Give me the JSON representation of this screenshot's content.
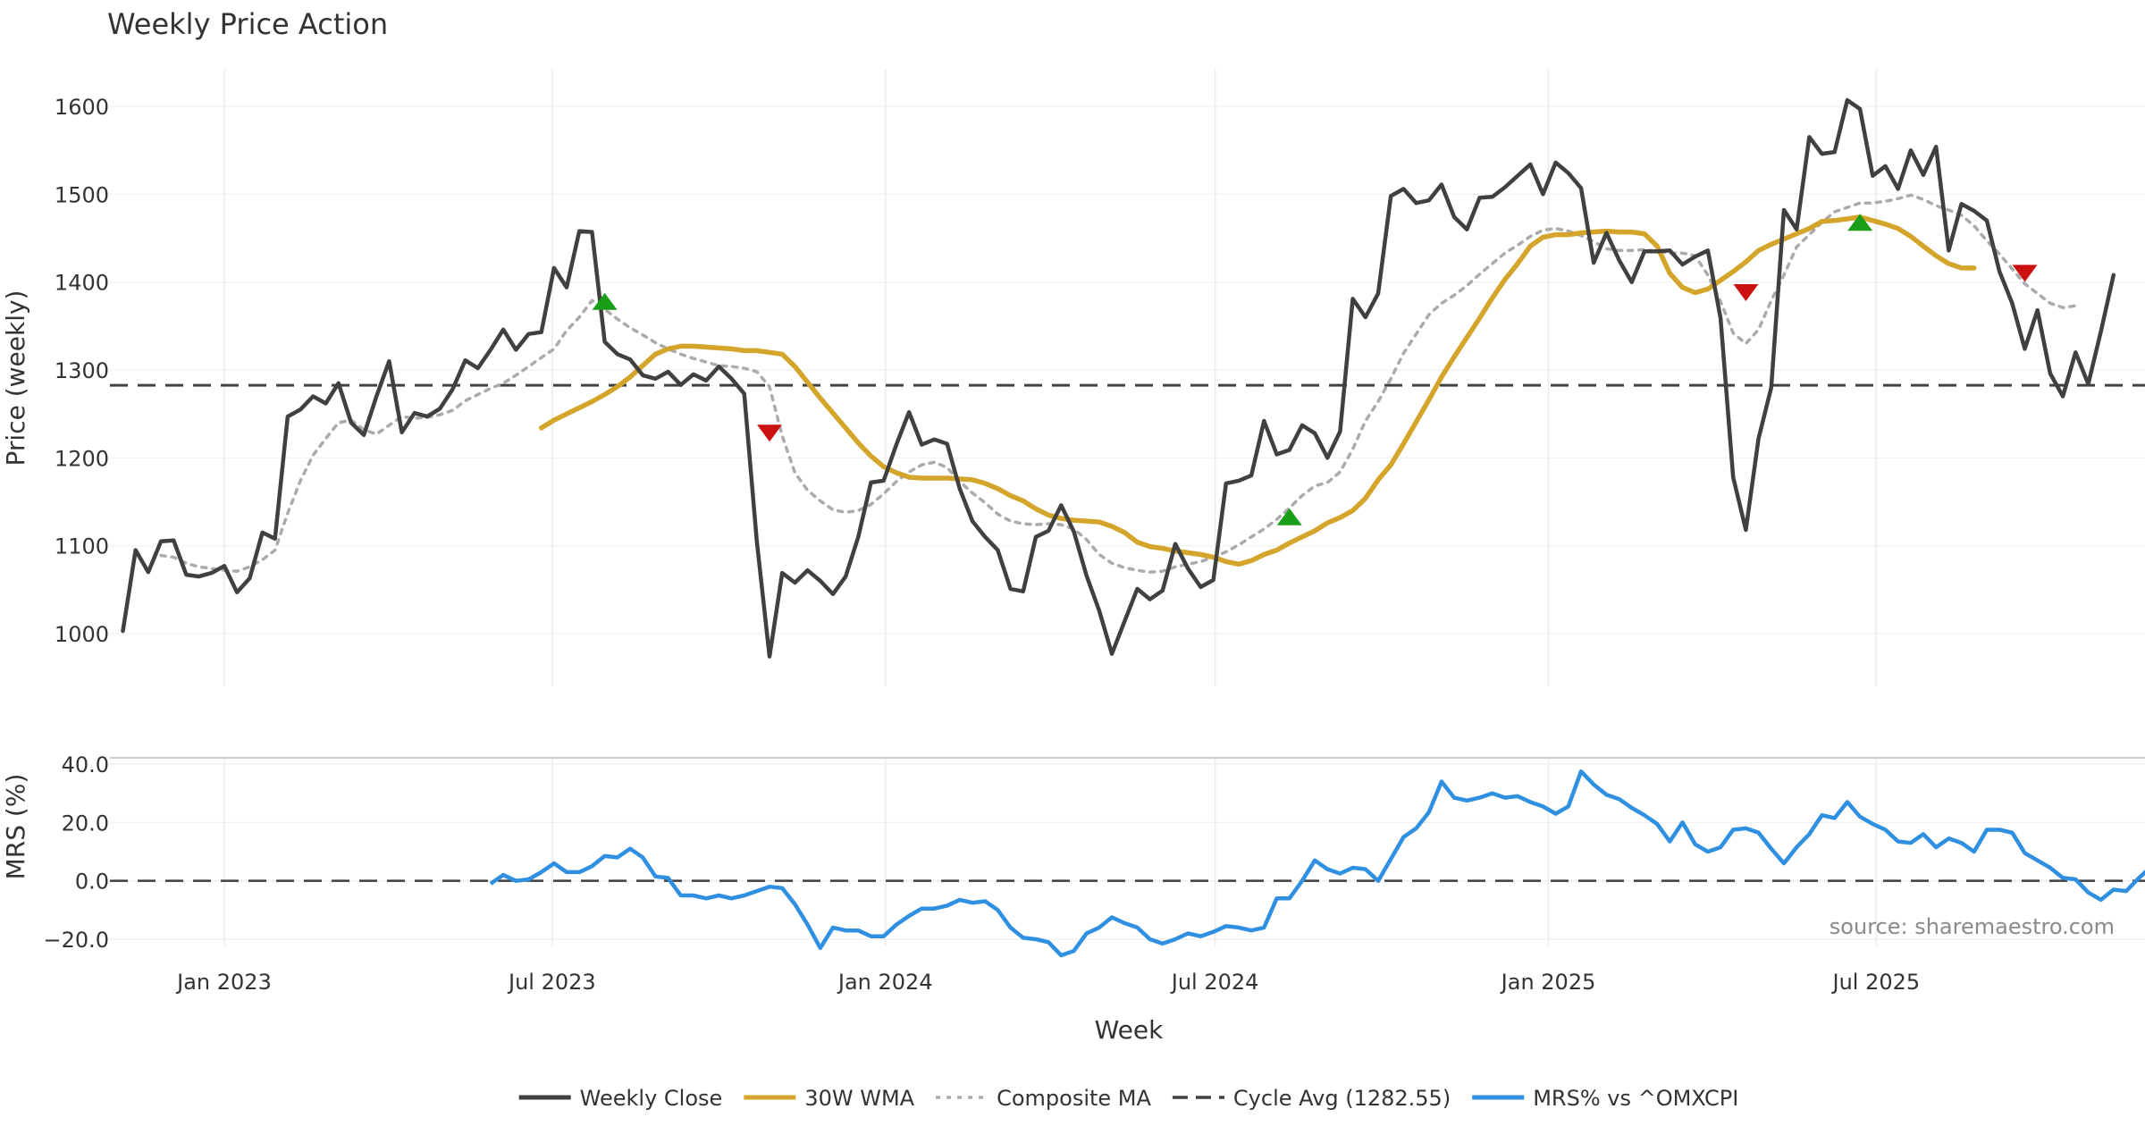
{
  "chart_data": [
    {
      "type": "line",
      "title": "Weekly Price Action",
      "ylabel": "Price (weekly)",
      "ylim": [
        945,
        1650
      ],
      "yticks": [
        1000,
        1100,
        1200,
        1300,
        1400,
        1500,
        1600
      ],
      "x_start": "2022-11-06",
      "x_step_days": 7,
      "series": [
        {
          "name": "Weekly Close",
          "color": "#404040",
          "style": "solid",
          "start_index": 0,
          "values": [
            1003,
            1095,
            1070,
            1105,
            1106,
            1067,
            1065,
            1069,
            1077,
            1047,
            1063,
            1115,
            1108,
            1247,
            1255,
            1270,
            1262,
            1285,
            1240,
            1226,
            1270,
            1310,
            1229,
            1251,
            1247,
            1256,
            1278,
            1311,
            1302,
            1323,
            1346,
            1323,
            1341,
            1343,
            1416,
            1394,
            1458,
            1457,
            1332,
            1318,
            1312,
            1294,
            1290,
            1298,
            1283,
            1295,
            1288,
            1304,
            1290,
            1273,
            1105,
            974,
            1069,
            1058,
            1072,
            1060,
            1045,
            1065,
            1110,
            1172,
            1174,
            1215,
            1252,
            1215,
            1221,
            1216,
            1165,
            1128,
            1110,
            1095,
            1051,
            1048,
            1110,
            1117,
            1146,
            1116,
            1066,
            1026,
            977,
            1014,
            1051,
            1039,
            1049,
            1102,
            1074,
            1053,
            1061,
            1171,
            1174,
            1180,
            1242,
            1204,
            1209,
            1237,
            1228,
            1200,
            1230,
            1381,
            1360,
            1387,
            1498,
            1506,
            1490,
            1493,
            1511,
            1474,
            1460,
            1496,
            1497,
            1508,
            1521,
            1534,
            1500,
            1536,
            1524,
            1507,
            1422,
            1456,
            1425,
            1400,
            1435,
            1435,
            1436,
            1420,
            1429,
            1436,
            1359,
            1178,
            1118,
            1222,
            1280,
            1482,
            1460,
            1565,
            1546,
            1548,
            1607,
            1597,
            1521,
            1532,
            1506,
            1550,
            1522,
            1554,
            1436,
            1489,
            1481,
            1470,
            1412,
            1376,
            1324,
            1368,
            1296,
            1270,
            1320,
            1284,
            1344,
            1408
          ]
        },
        {
          "name": "30W WMA",
          "color": "#d4a52a",
          "style": "solid",
          "start_index": 33,
          "values": [
            1234,
            1243,
            1250,
            1257,
            1264,
            1272,
            1281,
            1292,
            1305,
            1318,
            1324,
            1327,
            1327,
            1326,
            1325,
            1324,
            1322,
            1322,
            1320,
            1318,
            1304,
            1286,
            1268,
            1251,
            1234,
            1217,
            1202,
            1190,
            1183,
            1178,
            1177,
            1177,
            1177,
            1176,
            1175,
            1171,
            1165,
            1157,
            1151,
            1142,
            1135,
            1131,
            1129,
            1128,
            1127,
            1122,
            1115,
            1104,
            1099,
            1097,
            1094,
            1092,
            1090,
            1087,
            1082,
            1079,
            1083,
            1090,
            1095,
            1103,
            1110,
            1117,
            1126,
            1132,
            1140,
            1154,
            1175,
            1192,
            1216,
            1241,
            1266,
            1292,
            1315,
            1337,
            1359,
            1382,
            1403,
            1421,
            1441,
            1451,
            1454,
            1454,
            1456,
            1457,
            1458,
            1457,
            1457,
            1455,
            1441,
            1410,
            1394,
            1388,
            1392,
            1402,
            1412,
            1423,
            1436,
            1443,
            1449,
            1455,
            1461,
            1469,
            1470,
            1472,
            1474,
            1470,
            1466,
            1461,
            1452,
            1441,
            1430,
            1421,
            1416,
            1416
          ]
        },
        {
          "name": "Composite MA",
          "color": "#ababab",
          "style": "dotted",
          "start_index": 3,
          "values": [
            1089,
            1087,
            1080,
            1076,
            1074,
            1072,
            1071,
            1076,
            1084,
            1095,
            1137,
            1174,
            1203,
            1222,
            1240,
            1243,
            1232,
            1227,
            1237,
            1247,
            1245,
            1246,
            1249,
            1254,
            1265,
            1272,
            1279,
            1285,
            1294,
            1304,
            1314,
            1324,
            1345,
            1360,
            1379,
            1369,
            1358,
            1348,
            1340,
            1331,
            1324,
            1318,
            1313,
            1309,
            1305,
            1304,
            1302,
            1298,
            1281,
            1225,
            1183,
            1163,
            1151,
            1141,
            1138,
            1140,
            1147,
            1159,
            1173,
            1184,
            1192,
            1195,
            1189,
            1173,
            1160,
            1149,
            1136,
            1128,
            1125,
            1124,
            1125,
            1124,
            1119,
            1107,
            1090,
            1080,
            1075,
            1072,
            1070,
            1071,
            1076,
            1079,
            1082,
            1087,
            1093,
            1101,
            1110,
            1119,
            1130,
            1143,
            1157,
            1168,
            1172,
            1184,
            1210,
            1242,
            1264,
            1290,
            1319,
            1341,
            1363,
            1376,
            1385,
            1396,
            1409,
            1421,
            1433,
            1442,
            1452,
            1459,
            1461,
            1458,
            1453,
            1446,
            1438,
            1436,
            1436,
            1437,
            1435,
            1433,
            1433,
            1430,
            1408,
            1378,
            1342,
            1330,
            1346,
            1379,
            1408,
            1440,
            1454,
            1468,
            1480,
            1485,
            1490,
            1490,
            1492,
            1495,
            1499,
            1494,
            1487,
            1482,
            1476,
            1464,
            1447,
            1432,
            1415,
            1398,
            1387,
            1376,
            1371,
            1373
          ]
        },
        {
          "name": "Cycle Avg (1282.55)",
          "color": "#404040",
          "style": "dashed",
          "constant": 1282.55
        }
      ],
      "markers": [
        {
          "type": "buy",
          "x": "2023-07-30",
          "y": 1378,
          "color": "#1a9e1a"
        },
        {
          "type": "sell",
          "x": "2023-10-29",
          "y": 1228,
          "color": "#cc1111"
        },
        {
          "type": "buy",
          "x": "2024-08-11",
          "y": 1133,
          "color": "#1a9e1a"
        },
        {
          "type": "sell",
          "x": "2025-04-20",
          "y": 1388,
          "color": "#cc1111"
        },
        {
          "type": "buy",
          "x": "2025-06-22",
          "y": 1468,
          "color": "#1a9e1a"
        },
        {
          "type": "sell",
          "x": "2025-09-21",
          "y": 1410,
          "color": "#cc1111"
        }
      ]
    },
    {
      "type": "line",
      "ylabel": "MRS (%)",
      "xlabel": "Week",
      "ylim": [
        -24,
        42
      ],
      "yticks": [
        -20,
        0,
        20,
        40
      ],
      "ytick_labels": [
        "−20.0",
        "0.0",
        "20.0",
        "40.0"
      ],
      "xticks": [
        {
          "date": "2023-01-01",
          "label": "Jan 2023"
        },
        {
          "date": "2023-07-01",
          "label": "Jul 2023"
        },
        {
          "date": "2024-01-01",
          "label": "Jan 2024"
        },
        {
          "date": "2024-07-01",
          "label": "Jul 2024"
        },
        {
          "date": "2025-01-01",
          "label": "Jan 2025"
        },
        {
          "date": "2025-07-01",
          "label": "Jul 2025"
        }
      ],
      "series": [
        {
          "name": "MRS% vs ^OMXCPI",
          "color": "#2f8fe0",
          "style": "solid",
          "start_index": 29,
          "values": [
            -1,
            2,
            0,
            0.5,
            3,
            6,
            3,
            3,
            5,
            8.5,
            8,
            11,
            8,
            1.5,
            1,
            -5,
            -5,
            -6,
            -5,
            -6,
            -5,
            -3.5,
            -2,
            -2.5,
            -8,
            -15,
            -23,
            -16,
            -17,
            -17,
            -19,
            -19,
            -15,
            -12,
            -9.5,
            -9.5,
            -8.5,
            -6.5,
            -7.5,
            -7,
            -10,
            -16,
            -19.5,
            -20,
            -21,
            -25.5,
            -24,
            -18,
            -16,
            -12.5,
            -14.5,
            -16,
            -20,
            -21.5,
            -20,
            -18,
            -19,
            -17.5,
            -15.5,
            -16,
            -17,
            -16,
            -6,
            -6,
            0,
            7,
            4,
            2.5,
            4.5,
            4,
            0,
            7.5,
            15,
            18,
            23.5,
            34,
            28.5,
            27.5,
            28.5,
            30,
            28.5,
            29,
            27,
            25.5,
            23,
            25.5,
            37.5,
            33,
            29.5,
            28,
            25,
            22.5,
            19.5,
            13.5,
            20,
            12.5,
            10,
            11.5,
            17.5,
            18,
            16.5,
            11,
            6,
            11.5,
            16,
            22.5,
            21.5,
            27,
            22,
            19.5,
            17.5,
            13.5,
            13,
            16,
            11.5,
            14.5,
            13,
            10,
            17.5,
            17.5,
            16.5,
            9.5,
            7,
            4.5,
            1,
            0.5,
            -4,
            -6.5,
            -3,
            -3.5,
            1,
            5
          ]
        }
      ]
    }
  ],
  "cycle_reference": 0,
  "source_text": "source: sharemaestro.com",
  "legend": {
    "placement": "bottom-center",
    "items": [
      {
        "label": "Weekly Close",
        "color": "#404040",
        "style": "solid"
      },
      {
        "label": "30W WMA",
        "color": "#d4a52a",
        "style": "solid"
      },
      {
        "label": "Composite MA",
        "color": "#ababab",
        "style": "dotted"
      },
      {
        "label": "Cycle Avg (1282.55)",
        "color": "#404040",
        "style": "dashed"
      },
      {
        "label": "MRS% vs ^OMXCPI",
        "color": "#2f8fe0",
        "style": "solid"
      }
    ]
  },
  "grid": true
}
